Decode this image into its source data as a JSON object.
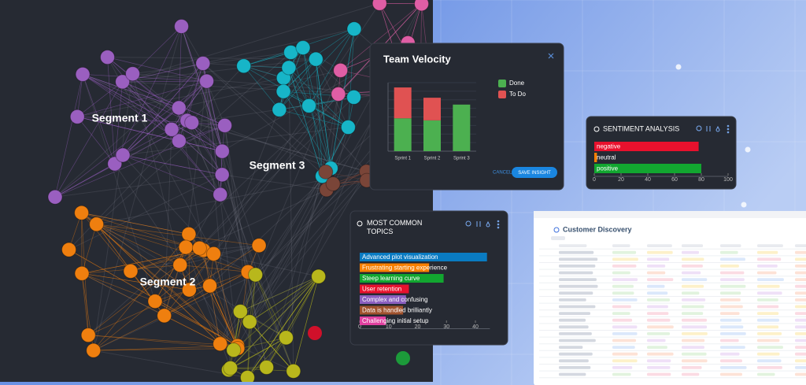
{
  "network": {
    "segments": [
      "Segment 1",
      "Segment 2",
      "Segment 3"
    ]
  },
  "velocity_dialog": {
    "buttons": [
      "CANCEL",
      "SAVE INSIGHT"
    ]
  },
  "chart_data": [
    {
      "type": "stacked-bar",
      "title": "Team Velocity",
      "categories": [
        "Sprint 1",
        "Sprint 2",
        "Sprint 3"
      ],
      "series": [
        {
          "name": "Done",
          "color": "#4cb050",
          "values": [
            4.8,
            4.5,
            6.8
          ]
        },
        {
          "name": "To Do",
          "color": "#e05252",
          "values": [
            4.5,
            3.3,
            0
          ]
        }
      ],
      "ylim": [
        0,
        10
      ]
    },
    {
      "type": "barh",
      "title": "SENTIMENT ANALYSIS",
      "categories": [
        "negative",
        "neutral",
        "positive"
      ],
      "values": [
        78,
        2,
        80
      ],
      "colors": [
        "#e8112d",
        "#f77f00",
        "#12a630"
      ],
      "xlim": [
        0,
        100
      ],
      "xticks": [
        0,
        20,
        40,
        60,
        80,
        100
      ]
    },
    {
      "type": "barh",
      "title": "MOST COMMON TOPICS",
      "categories": [
        "Advanced plot visualization",
        "Frustrating starting experience",
        "Steep learning curve",
        "User retention",
        "Complex and confusing",
        "Data is handled brilliantly",
        "Challenging initial setup"
      ],
      "values": [
        44,
        24,
        29,
        17,
        16,
        15,
        9
      ],
      "colors": [
        "#0a7bc2",
        "#f77f00",
        "#12a630",
        "#e8112d",
        "#8a5fbf",
        "#a0522d",
        "#e040a0"
      ],
      "xlim": [
        0,
        45
      ],
      "xticks": [
        0,
        10,
        20,
        30,
        40
      ]
    }
  ],
  "table": {
    "title": "Customer Discovery"
  }
}
